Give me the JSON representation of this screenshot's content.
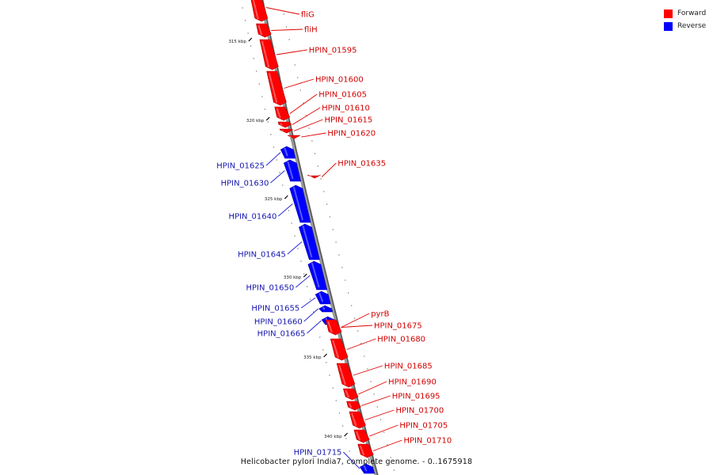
{
  "legend": {
    "forward_label": "Forward",
    "reverse_label": "Reverse",
    "forward_color": "#ff0000",
    "reverse_color": "#0000ff"
  },
  "caption": "Helicobacter pylori India7, complete genome. - 0..1675918",
  "ticks": [
    "315 kbp",
    "320 kbp",
    "325 kbp",
    "330 kbp",
    "335 kbp",
    "340 kbp"
  ],
  "genes": [
    {
      "label": "fliG",
      "strand": "forward"
    },
    {
      "label": "fliH",
      "strand": "forward"
    },
    {
      "label": "HPIN_01595",
      "strand": "forward"
    },
    {
      "label": "HPIN_01600",
      "strand": "forward"
    },
    {
      "label": "HPIN_01605",
      "strand": "forward"
    },
    {
      "label": "HPIN_01610",
      "strand": "forward"
    },
    {
      "label": "HPIN_01615",
      "strand": "forward"
    },
    {
      "label": "HPIN_01620",
      "strand": "forward"
    },
    {
      "label": "HPIN_01635",
      "strand": "forward"
    },
    {
      "label": "HPIN_01625",
      "strand": "reverse"
    },
    {
      "label": "HPIN_01630",
      "strand": "reverse"
    },
    {
      "label": "HPIN_01640",
      "strand": "reverse"
    },
    {
      "label": "HPIN_01645",
      "strand": "reverse"
    },
    {
      "label": "HPIN_01650",
      "strand": "reverse"
    },
    {
      "label": "HPIN_01655",
      "strand": "reverse"
    },
    {
      "label": "HPIN_01660",
      "strand": "reverse"
    },
    {
      "label": "HPIN_01665",
      "strand": "reverse"
    },
    {
      "label": "pyrB",
      "strand": "forward"
    },
    {
      "label": "HPIN_01675",
      "strand": "forward"
    },
    {
      "label": "HPIN_01680",
      "strand": "forward"
    },
    {
      "label": "HPIN_01685",
      "strand": "forward"
    },
    {
      "label": "HPIN_01690",
      "strand": "forward"
    },
    {
      "label": "HPIN_01695",
      "strand": "forward"
    },
    {
      "label": "HPIN_01700",
      "strand": "forward"
    },
    {
      "label": "HPIN_01705",
      "strand": "forward"
    },
    {
      "label": "HPIN_01710",
      "strand": "forward"
    },
    {
      "label": "HPIN_01715",
      "strand": "reverse"
    }
  ]
}
